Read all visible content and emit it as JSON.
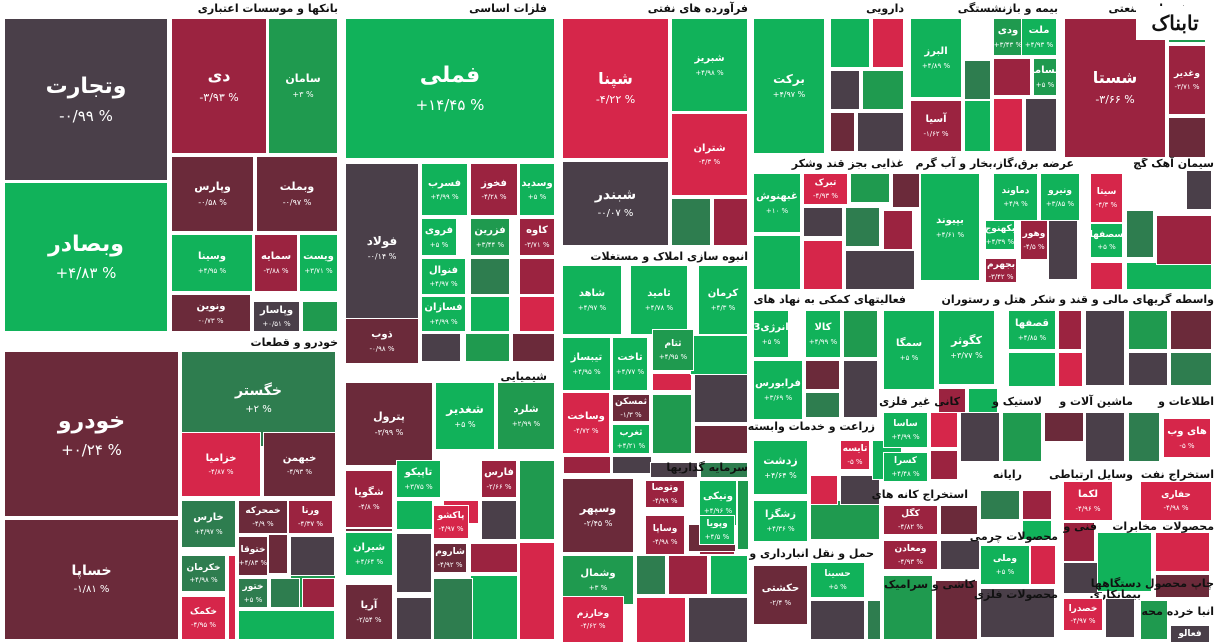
{
  "chart_data": {
    "type": "treemap",
    "colors": {
      "up_strong": "#11b25a",
      "up_mid": "#1f9a4f",
      "up_weak": "#2e7d4f",
      "neutral": "#4a3f49",
      "down_weak": "#6b2a3a",
      "down_mid": "#9b2340",
      "down_strong": "#d6264a"
    },
    "sectors": [
      {
        "name": "بانکها و موسسات اعتباری"
      },
      {
        "name": "فلزات اساسی"
      },
      {
        "name": "فرآورده های نفتی"
      },
      {
        "name": "دارویی"
      },
      {
        "name": "بیمه و بازنشستگی"
      },
      {
        "name": "چندرشته ای صنعتی"
      },
      {
        "name": "خودرو و قطعات"
      },
      {
        "name": "شیمیایی"
      },
      {
        "name": "انبوه سازی املاک و مستغلات"
      },
      {
        "name": "سرمایه گذاریها"
      },
      {
        "name": "غذایی بجز قند وشکر"
      },
      {
        "name": "عرضه برق،گاز،بخار و آب گرم"
      },
      {
        "name": "سیمان آهک گچ"
      },
      {
        "name": "فعالیتهای کمکی به نهاد های"
      },
      {
        "name": "هتل و رستوران"
      },
      {
        "name": "قند و شکر"
      },
      {
        "name": "واسطه گریهای مالی و"
      },
      {
        "name": "کانی غیر فلزی"
      },
      {
        "name": "لاستیک و"
      },
      {
        "name": "ماشین آلات و"
      },
      {
        "name": "اطلاعات و"
      },
      {
        "name": "زراعت و خدمات وابسته"
      },
      {
        "name": "رایانه"
      },
      {
        "name": "وسایل ارتباطی"
      },
      {
        "name": "استخراج نفت"
      },
      {
        "name": "استخراج کانه های"
      },
      {
        "name": "محصولات چرمی"
      },
      {
        "name": "فنی و"
      },
      {
        "name": "مخابرات"
      },
      {
        "name": "محصولات"
      },
      {
        "name": "حمل و نقل انبارداری و"
      },
      {
        "name": "کاشی و سرامیک"
      },
      {
        "name": "محصولات فلزی"
      },
      {
        "name": "بیمانکاری"
      },
      {
        "name": "چاپ محصول دستگاهها"
      },
      {
        "name": "انبا خرده محه"
      }
    ],
    "tiles": [
      {
        "name": "وتجارت",
        "pct": "-۰/۹۹ %",
        "tone": "neutral"
      },
      {
        "name": "وبصادر",
        "pct": "+۴/۸۳ %",
        "tone": "up_strong"
      },
      {
        "name": "دی",
        "pct": "-۳/۹۳ %",
        "tone": "down_mid"
      },
      {
        "name": "سامان",
        "pct": "+۳ %",
        "tone": "up_mid"
      },
      {
        "name": "وپارس",
        "pct": "-۰/۵۸ %",
        "tone": "down_weak"
      },
      {
        "name": "وبملت",
        "pct": "-۰/۹۷ %",
        "tone": "down_weak"
      },
      {
        "name": "وسینا",
        "pct": "+۴/۹۵ %",
        "tone": "up_strong"
      },
      {
        "name": "سمایه",
        "pct": "-۳/۸۸ %",
        "tone": "down_mid"
      },
      {
        "name": "ویست",
        "pct": "+۳/۷۱ %",
        "tone": "up_strong"
      },
      {
        "name": "ونوین",
        "pct": "-۰/۷۳ %",
        "tone": "down_weak"
      },
      {
        "name": "وپاسار",
        "pct": "+۰/۵۱ %",
        "tone": "neutral"
      },
      {
        "name": "فملی",
        "pct": "+۱۴/۴۵ %",
        "tone": "up_strong"
      },
      {
        "name": "فولاد",
        "pct": "-۰/۱۴ %",
        "tone": "neutral"
      },
      {
        "name": "فسرب",
        "pct": "+۴/۹۹ %",
        "tone": "up_strong"
      },
      {
        "name": "فخوز",
        "pct": "-۴/۲۸ %",
        "tone": "down_mid"
      },
      {
        "name": "وسدید",
        "pct": "+۵ %",
        "tone": "up_strong"
      },
      {
        "name": "فروی",
        "pct": "+۵ %",
        "tone": "up_strong"
      },
      {
        "name": "فزرین",
        "pct": "+۳/۴۴ %",
        "tone": "up_mid"
      },
      {
        "name": "کاوه",
        "pct": "-۳/۷۱ %",
        "tone": "down_mid"
      },
      {
        "name": "فنوال",
        "pct": "+۴/۹۷ %",
        "tone": "up_strong"
      },
      {
        "name": "فسازان",
        "pct": "+۴/۹۹ %",
        "tone": "up_strong"
      },
      {
        "name": "ذوب",
        "pct": "-۰/۹۸ %",
        "tone": "down_weak"
      },
      {
        "name": "شپنا",
        "pct": "-۴/۲۲ %",
        "tone": "down_strong"
      },
      {
        "name": "شبریز",
        "pct": "+۴/۹۸ %",
        "tone": "up_strong"
      },
      {
        "name": "شتران",
        "pct": "-۴/۳ %",
        "tone": "down_strong"
      },
      {
        "name": "شبندر",
        "pct": "-۰/۰۷ %",
        "tone": "neutral"
      },
      {
        "name": "برکت",
        "pct": "+۴/۹۷ %",
        "tone": "up_strong"
      },
      {
        "name": "البرز",
        "pct": "+۴/۸۹ %",
        "tone": "up_strong"
      },
      {
        "name": "ودی",
        "pct": "+۳/۴۳ %",
        "tone": "up_mid"
      },
      {
        "name": "ملت",
        "pct": "+۴/۹۳ %",
        "tone": "up_strong"
      },
      {
        "name": "بساما",
        "pct": "+۵ %",
        "tone": "up_mid"
      },
      {
        "name": "آسیا",
        "pct": "-۱/۶۲ %",
        "tone": "down_mid"
      },
      {
        "name": "شستا",
        "pct": "-۳/۶۶ %",
        "tone": "down_mid"
      },
      {
        "name": "وغدیر",
        "pct": "-۳/۷۱ %",
        "tone": "down_mid"
      },
      {
        "name": "خودرو",
        "pct": "+۰/۲۴ %",
        "tone": "down_weak"
      },
      {
        "name": "خگستر",
        "pct": "+۲ %",
        "tone": "up_weak"
      },
      {
        "name": "خزامیا",
        "pct": "-۴/۸۷ %",
        "tone": "down_strong"
      },
      {
        "name": "خبهمن",
        "pct": "-۴/۹۳ %",
        "tone": "down_weak"
      },
      {
        "name": "خساپا",
        "pct": "-۱/۸۱ %",
        "tone": "down_weak"
      },
      {
        "name": "خمحرکه",
        "pct": "-۴/۹ %",
        "tone": "down_weak"
      },
      {
        "name": "خارس",
        "pct": "+۴/۹۷ %",
        "tone": "up_weak"
      },
      {
        "name": "ورنا",
        "pct": "-۴/۳۷ %",
        "tone": "down_mid"
      },
      {
        "name": "خکرمان",
        "pct": "+۴/۹۸ %",
        "tone": "up_weak"
      },
      {
        "name": "ختوقا",
        "pct": "+۴/۸۳ %",
        "tone": "down_weak"
      },
      {
        "name": "ختور",
        "pct": "+۵ %",
        "tone": "up_weak"
      },
      {
        "name": "خکمک",
        "pct": "-۴/۹۵ %",
        "tone": "down_strong"
      },
      {
        "name": "پترول",
        "pct": "-۳/۹۹ %",
        "tone": "down_weak"
      },
      {
        "name": "شغدیر",
        "pct": "+۵ %",
        "tone": "up_strong"
      },
      {
        "name": "شلرد",
        "pct": "+۲/۹۹ %",
        "tone": "up_mid"
      },
      {
        "name": "تاپیکو",
        "pct": "+۳/۷۵ %",
        "tone": "up_strong"
      },
      {
        "name": "شگویا",
        "pct": "-۴/۸ %",
        "tone": "down_mid"
      },
      {
        "name": "فارس",
        "pct": "-۲/۶۶ %",
        "tone": "down_mid"
      },
      {
        "name": "پاکشو",
        "pct": "-۴/۹۷ %",
        "tone": "down_strong"
      },
      {
        "name": "شیران",
        "pct": "+۴/۶۴ %",
        "tone": "up_strong"
      },
      {
        "name": "شاروم",
        "pct": "-۴/۹۲ %",
        "tone": "down_weak"
      },
      {
        "name": "آریا",
        "pct": "-۲/۵۴ %",
        "tone": "down_weak"
      },
      {
        "name": "شاهد",
        "pct": "+۴/۹۷ %",
        "tone": "up_strong"
      },
      {
        "name": "ثامید",
        "pct": "+۴/۷۸ %",
        "tone": "up_strong"
      },
      {
        "name": "کرمان",
        "pct": "+۴/۳ %",
        "tone": "up_strong"
      },
      {
        "name": "تیبساز",
        "pct": "+۴/۹۵ %",
        "tone": "up_strong"
      },
      {
        "name": "تاخت",
        "pct": "+۴/۷۷ %",
        "tone": "up_strong"
      },
      {
        "name": "ثتام",
        "pct": "+۴/۹۵ %",
        "tone": "up_mid"
      },
      {
        "name": "وساخت",
        "pct": "-۴/۷۲ %",
        "tone": "down_strong"
      },
      {
        "name": "ثمسکن",
        "pct": "-۱/۳ %",
        "tone": "down_weak"
      },
      {
        "name": "ثغرب",
        "pct": "+۴/۲۱ %",
        "tone": "up_strong"
      },
      {
        "name": "وسپهر",
        "pct": "-۲/۴۵ %",
        "tone": "down_weak"
      },
      {
        "name": "وتوصا",
        "pct": "-۴/۹۹ %",
        "tone": "down_mid"
      },
      {
        "name": "ونیکی",
        "pct": "+۴/۹۶ %",
        "tone": "up_strong"
      },
      {
        "name": "وساپا",
        "pct": "-۴/۹۸ %",
        "tone": "down_mid"
      },
      {
        "name": "وپویا",
        "pct": "+۴/۵ %",
        "tone": "up_strong"
      },
      {
        "name": "وشمال",
        "pct": "+۳ %",
        "tone": "up_mid"
      },
      {
        "name": "وخارزم",
        "pct": "-۴/۶۲ %",
        "tone": "down_strong"
      },
      {
        "name": "غبهنوش",
        "pct": "+۱۰ %",
        "tone": "up_strong"
      },
      {
        "name": "تبرک",
        "pct": "-۴/۹۳ %",
        "tone": "down_strong"
      },
      {
        "name": "بپیوند",
        "pct": "+۴/۶۱ %",
        "tone": "up_strong"
      },
      {
        "name": "دماوند",
        "pct": "+۴/۹ %",
        "tone": "up_strong"
      },
      {
        "name": "ونیرو",
        "pct": "+۳/۸۵ %",
        "tone": "up_strong"
      },
      {
        "name": "بکهنوج",
        "pct": "+۴/۳۹ %",
        "tone": "up_strong"
      },
      {
        "name": "وهور",
        "pct": "-۴/۵ %",
        "tone": "down_mid"
      },
      {
        "name": "بجهرم",
        "pct": "-۳/۴۲ %",
        "tone": "down_mid"
      },
      {
        "name": "سیتا",
        "pct": "-۴/۳ %",
        "tone": "down_strong"
      },
      {
        "name": "سصفها",
        "pct": "+۵ %",
        "tone": "up_strong"
      },
      {
        "name": "انرژی3",
        "pct": "+۵ %",
        "tone": "up_strong"
      },
      {
        "name": "کالا",
        "pct": "+۴/۹۹ %",
        "tone": "up_strong"
      },
      {
        "name": "فرابورس",
        "pct": "+۳/۶۹ %",
        "tone": "up_strong"
      },
      {
        "name": "سمگا",
        "pct": "+۵ %",
        "tone": "up_strong"
      },
      {
        "name": "کگوثر",
        "pct": "+۳/۷۷ %",
        "tone": "up_strong"
      },
      {
        "name": "قصفها",
        "pct": "+۴/۸۵ %",
        "tone": "up_strong"
      },
      {
        "name": "ساسا",
        "pct": "+۴/۹۹ %",
        "tone": "up_strong"
      },
      {
        "name": "کسرا",
        "pct": "+۴/۴۸ %",
        "tone": "up_strong"
      },
      {
        "name": "زدشت",
        "pct": "+۴/۶۴ %",
        "tone": "up_strong"
      },
      {
        "name": "تایسه",
        "pct": "-۵ %",
        "tone": "down_strong"
      },
      {
        "name": "زشگزا",
        "pct": "+۴/۳۶ %",
        "tone": "up_strong"
      },
      {
        "name": "کگل",
        "pct": "-۴/۸۲ %",
        "tone": "down_mid"
      },
      {
        "name": "ومعادن",
        "pct": "-۴/۹۳ %",
        "tone": "down_mid"
      },
      {
        "name": "حکشتی",
        "pct": "-۲/۴ %",
        "tone": "down_weak"
      },
      {
        "name": "حسینا",
        "pct": "+۵ %",
        "tone": "up_strong"
      },
      {
        "name": "وملی",
        "pct": "+۵ %",
        "tone": "up_strong"
      },
      {
        "name": "های وب",
        "pct": "-۵ %",
        "tone": "down_strong"
      },
      {
        "name": "لکما",
        "pct": "-۴/۹۶ %",
        "tone": "down_strong"
      },
      {
        "name": "حفاری",
        "pct": "-۴/۹۸ %",
        "tone": "down_strong"
      },
      {
        "name": "خصدرا",
        "pct": "-۴/۹۷ %",
        "tone": "down_strong"
      },
      {
        "name": "فعالو",
        "pct": "",
        "tone": "neutral"
      }
    ],
    "logo_text": "تابناک"
  }
}
